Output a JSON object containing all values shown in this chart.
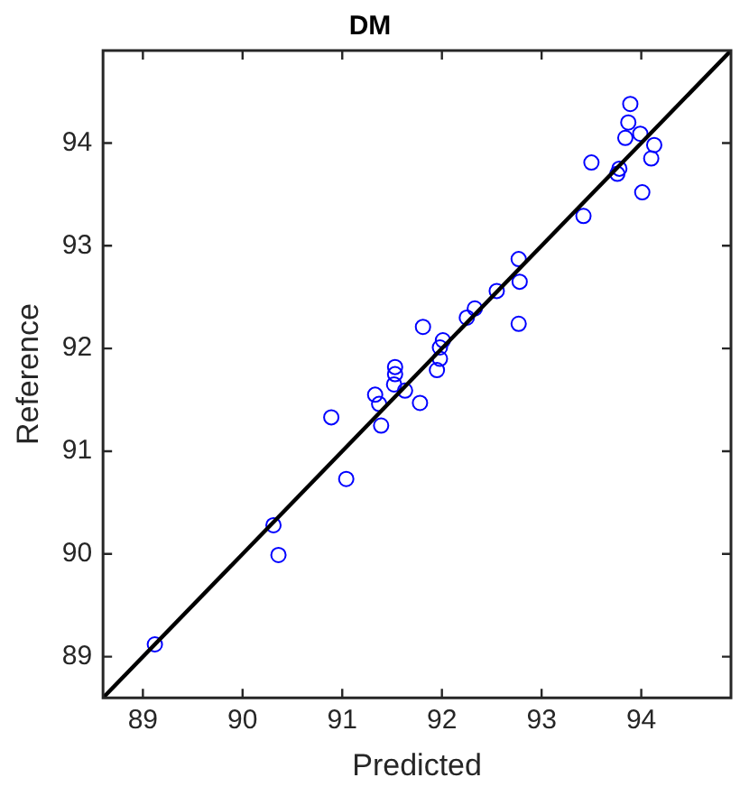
{
  "chart_data": {
    "type": "scatter",
    "title": "DM",
    "xlabel": "Predicted",
    "ylabel": "Reference",
    "xlim": [
      88.6,
      94.9
    ],
    "ylim": [
      88.6,
      94.9
    ],
    "xticks": [
      89,
      90,
      91,
      92,
      93,
      94
    ],
    "yticks": [
      89,
      90,
      91,
      92,
      93,
      94
    ],
    "grid": false,
    "legend": false,
    "marker": "circle",
    "series": [
      {
        "color": "#0000ff",
        "x": [
          93.89,
          93.87,
          93.84,
          93.99,
          94.13,
          94.1,
          93.5,
          93.78,
          93.76,
          94.01,
          93.42,
          92.77,
          92.78,
          92.55,
          92.33,
          92.25,
          91.81,
          92.77,
          92.01,
          91.98,
          91.98,
          91.95,
          91.53,
          91.53,
          91.52,
          91.63,
          91.33,
          91.37,
          91.78,
          91.39,
          90.89,
          91.04,
          90.31,
          90.36,
          89.12
        ],
        "values": [
          94.38,
          94.2,
          94.05,
          94.09,
          93.98,
          93.85,
          93.81,
          93.75,
          93.7,
          93.52,
          93.29,
          92.87,
          92.65,
          92.56,
          92.39,
          92.3,
          92.21,
          92.24,
          92.08,
          92.01,
          91.9,
          91.79,
          91.82,
          91.75,
          91.65,
          91.59,
          91.55,
          91.46,
          91.47,
          91.25,
          91.33,
          90.73,
          90.28,
          89.99,
          89.12
        ]
      },
      {
        "type": "line",
        "color": "#000000",
        "marker": "none",
        "x": [
          88.6,
          94.9
        ],
        "values": [
          88.6,
          94.9
        ]
      }
    ]
  }
}
